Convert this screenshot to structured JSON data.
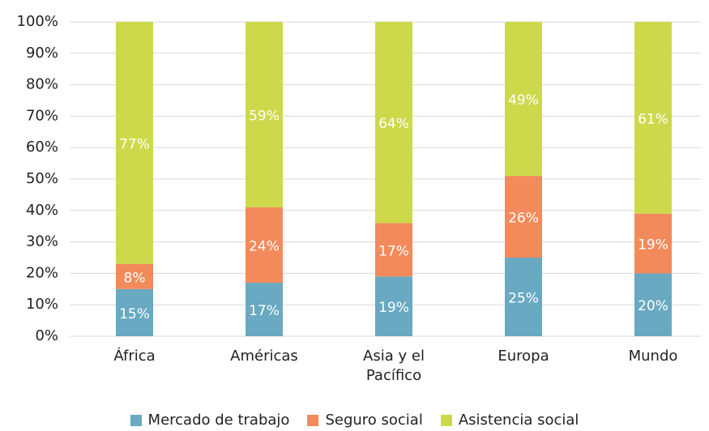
{
  "chart_data": {
    "type": "stacked_bar",
    "categories": [
      "África",
      "Américas",
      "Asia y el Pacífico",
      "Europa",
      "Mundo"
    ],
    "series": [
      {
        "name": "Mercado de trabajo",
        "color": "#69a9c2",
        "values": [
          15,
          17,
          19,
          25,
          20
        ],
        "value_labels": [
          "15%",
          "17%",
          "19%",
          "25%",
          "20%"
        ]
      },
      {
        "name": "Seguro social",
        "color": "#f28a5b",
        "values": [
          8,
          24,
          17,
          26,
          19
        ],
        "value_labels": [
          "8%",
          "24%",
          "17%",
          "26%",
          "19%"
        ]
      },
      {
        "name": "Asistencia social",
        "color": "#cdd94b",
        "values": [
          77,
          59,
          64,
          49,
          61
        ],
        "value_labels": [
          "77%",
          "59%",
          "64%",
          "49%",
          "61%"
        ]
      }
    ],
    "ylim": [
      0,
      100
    ],
    "yticks": [
      {
        "value": 0,
        "label": "0%"
      },
      {
        "value": 10,
        "label": "10%"
      },
      {
        "value": 20,
        "label": "20%"
      },
      {
        "value": 30,
        "label": "30%"
      },
      {
        "value": 40,
        "label": "40%"
      },
      {
        "value": 50,
        "label": "50%"
      },
      {
        "value": 60,
        "label": "60%"
      },
      {
        "value": 70,
        "label": "70%"
      },
      {
        "value": 80,
        "label": "80%"
      },
      {
        "value": 90,
        "label": "90%"
      },
      {
        "value": 100,
        "label": "100%"
      }
    ],
    "grid": true,
    "legend": "bottom"
  }
}
